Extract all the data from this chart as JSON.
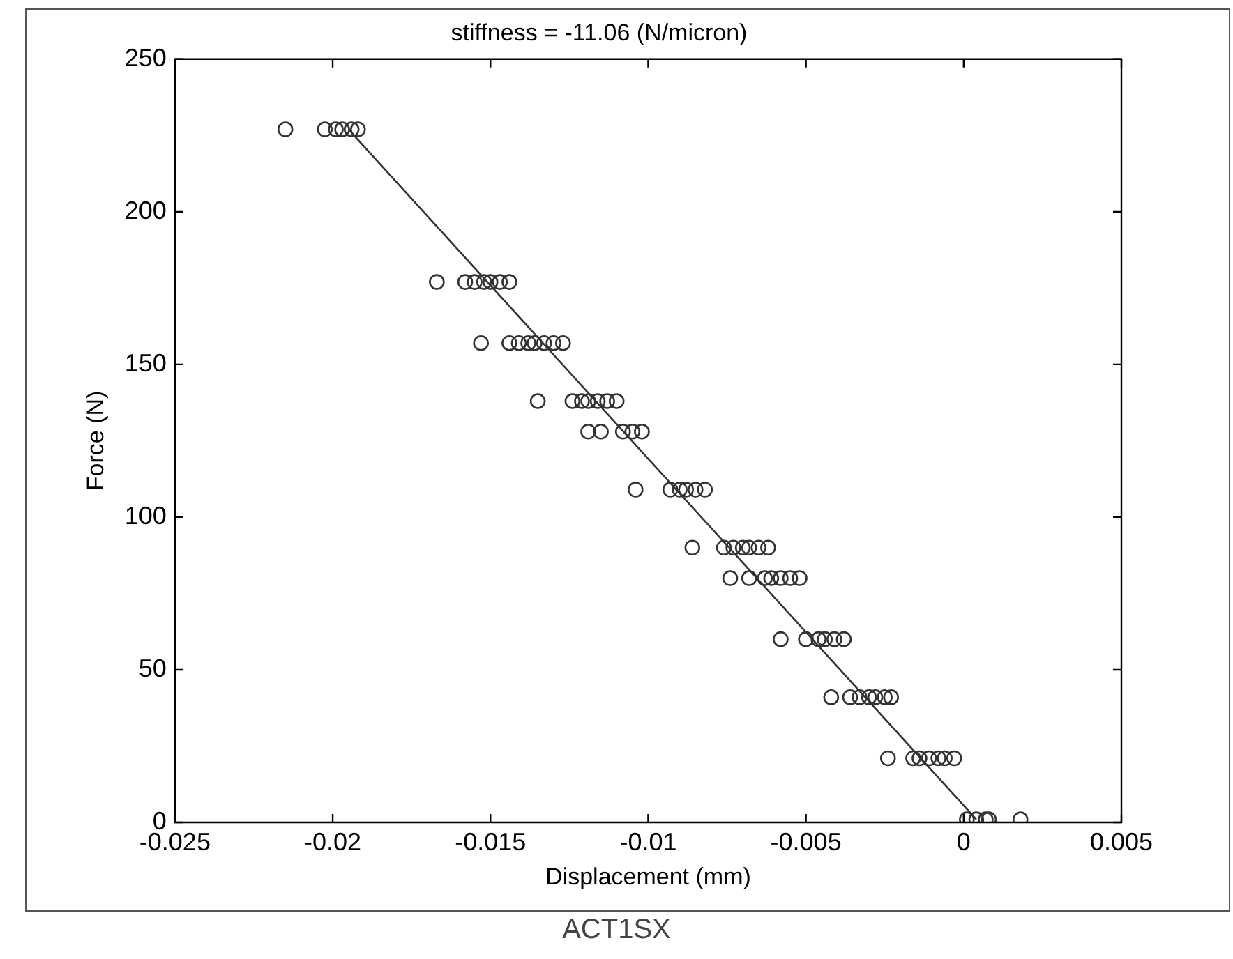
{
  "chart_data": {
    "type": "scatter",
    "title": "stiffness = -11.06 (N/micron)",
    "xlabel": "Displacement (mm)",
    "ylabel": "Force (N)",
    "annotations": [
      "ACT1SX"
    ],
    "xlim": [
      -0.025,
      0.005
    ],
    "xticks": [
      -0.025,
      -0.02,
      -0.015,
      -0.01,
      -0.005,
      0,
      0.005
    ],
    "ylim": [
      0,
      250
    ],
    "yticks": [
      0,
      50,
      100,
      150,
      200,
      250
    ],
    "grid": false,
    "legend": false,
    "marker": "circle",
    "series": [
      {
        "color": "#333333",
        "x": [
          -0.0215,
          -0.02025,
          -0.0199,
          -0.0197,
          -0.0194,
          -0.0192,
          -0.0167,
          -0.0158,
          -0.0155,
          -0.0152,
          -0.015,
          -0.0147,
          -0.0144,
          -0.0153,
          -0.0144,
          -0.0141,
          -0.0138,
          -0.0136,
          -0.0133,
          -0.013,
          -0.0127,
          -0.0135,
          -0.0124,
          -0.0121,
          -0.0119,
          -0.0116,
          -0.0113,
          -0.011,
          -0.0119,
          -0.0115,
          -0.0108,
          -0.0105,
          -0.0102,
          -0.0104,
          -0.0093,
          -0.009,
          -0.0088,
          -0.0085,
          -0.0082,
          -0.0086,
          -0.0076,
          -0.0073,
          -0.007,
          -0.0068,
          -0.0065,
          -0.0062,
          -0.0074,
          -0.0068,
          -0.0063,
          -0.0061,
          -0.0058,
          -0.0055,
          -0.0052,
          -0.0058,
          -0.005,
          -0.0046,
          -0.0044,
          -0.0041,
          -0.0038,
          -0.0042,
          -0.0036,
          -0.0033,
          -0.003,
          -0.0028,
          -0.0025,
          -0.0023,
          -0.0024,
          -0.0016,
          -0.0014,
          -0.0011,
          -0.0008,
          -0.0006,
          -0.0003,
          0.0001,
          0.0004,
          0.0007,
          0.0008,
          0.0018
        ],
        "values": [
          227,
          227,
          227,
          227,
          227,
          227,
          177,
          177,
          177,
          177,
          177,
          177,
          177,
          157,
          157,
          157,
          157,
          157,
          157,
          157,
          157,
          138,
          138,
          138,
          138,
          138,
          138,
          138,
          128,
          128,
          128,
          128,
          128,
          109,
          109,
          109,
          109,
          109,
          109,
          90,
          90,
          90,
          90,
          90,
          90,
          90,
          80,
          80,
          80,
          80,
          80,
          80,
          80,
          60,
          60,
          60,
          60,
          60,
          60,
          41,
          41,
          41,
          41,
          41,
          41,
          41,
          21,
          21,
          21,
          21,
          21,
          21,
          21,
          1,
          1,
          1,
          1,
          1
        ]
      },
      {
        "type": "line",
        "color": "#333333",
        "marker": "none",
        "x": [
          -0.0195,
          0.0004
        ],
        "values": [
          227,
          1
        ]
      }
    ]
  }
}
